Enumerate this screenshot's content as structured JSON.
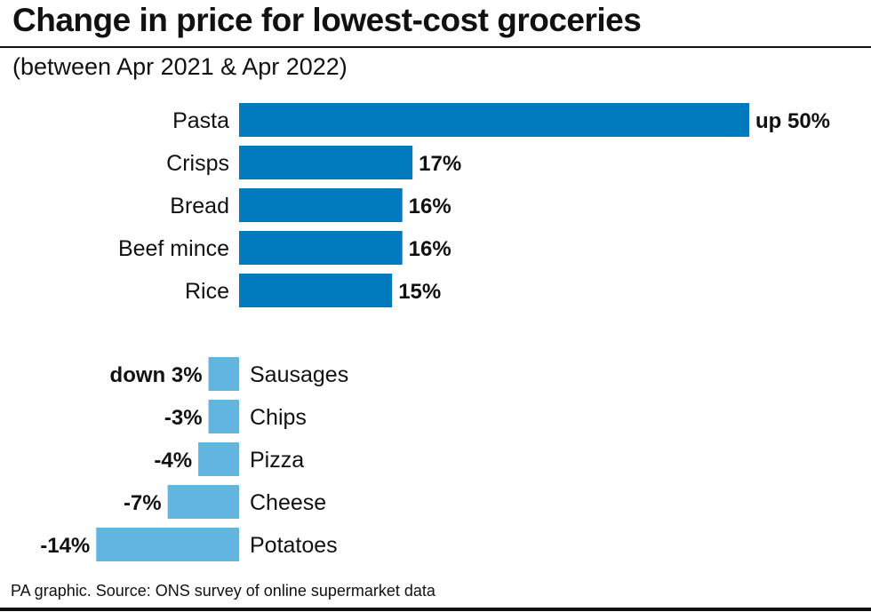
{
  "title": "Change in price for lowest-cost groceries",
  "subtitle": "(between Apr 2021 & Apr 2022)",
  "source": "PA graphic. Source: ONS survey of online supermarket data",
  "chart_data": {
    "type": "bar",
    "orientation": "horizontal",
    "unit": "%",
    "colors": {
      "positive": "#0079bd",
      "negative": "#62b5e1"
    },
    "groups": [
      {
        "categories": [
          "Pasta",
          "Crisps",
          "Bread",
          "Beef mince",
          "Rice"
        ],
        "values": [
          50,
          17,
          16,
          16,
          15
        ],
        "value_labels": [
          "up 50%",
          "17%",
          "16%",
          "16%",
          "15%"
        ]
      },
      {
        "categories": [
          "Sausages",
          "Chips",
          "Pizza",
          "Cheese",
          "Potatoes"
        ],
        "values": [
          -3,
          -3,
          -4,
          -7,
          -14
        ],
        "value_labels": [
          "down 3%",
          "-3%",
          "-4%",
          "-7%",
          "-14%"
        ]
      }
    ]
  }
}
